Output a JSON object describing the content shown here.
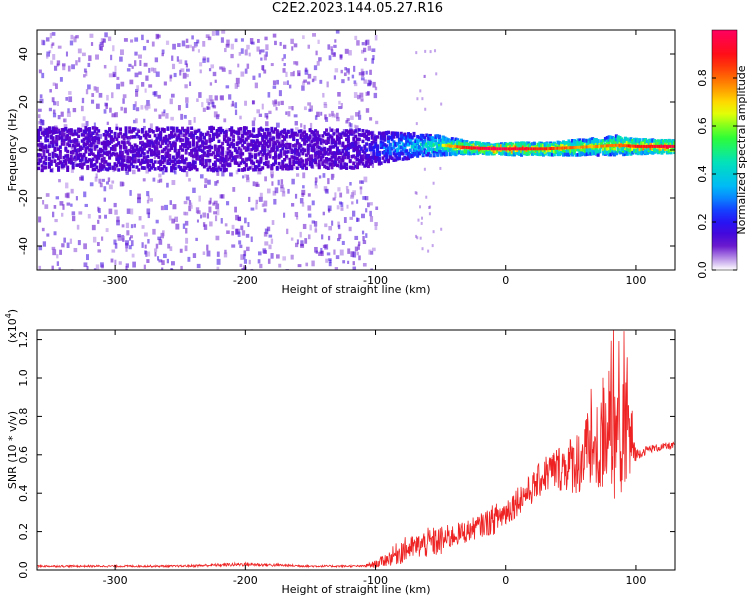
{
  "figure": {
    "title": "C2E2.2023.144.05.27.R16"
  },
  "chart_data": [
    {
      "type": "heatmap",
      "xlabel": "Height of straight line (km)",
      "ylabel": "Frequency (Hz)",
      "xlim": [
        -360,
        130
      ],
      "ylim": [
        -50,
        50
      ],
      "x_ticks": [
        -300,
        -200,
        -100,
        0,
        100
      ],
      "y_ticks": [
        -40,
        -20,
        0,
        20,
        40
      ],
      "grid": false,
      "colorbar": {
        "label": "Normalized spectral amplitude",
        "range": [
          0,
          1
        ],
        "ticks": [
          "0.0",
          "0.2",
          "0.4",
          "0.6",
          "0.8"
        ],
        "colormap": [
          "#ffffff",
          "#5a00c8",
          "#1a1aff",
          "#00b4ff",
          "#00e0c0",
          "#30ff30",
          "#ffff00",
          "#ff8000",
          "#ff1010",
          "#ff0060"
        ]
      },
      "band": [
        {
          "x": -350,
          "center": 0.5,
          "half_width": 9,
          "amplitude": 0.12
        },
        {
          "x": -300,
          "center": 0.5,
          "half_width": 9,
          "amplitude": 0.13
        },
        {
          "x": -250,
          "center": 0.5,
          "half_width": 9,
          "amplitude": 0.13
        },
        {
          "x": -200,
          "center": 0.5,
          "half_width": 9,
          "amplitude": 0.14
        },
        {
          "x": -150,
          "center": 0.5,
          "half_width": 8,
          "amplitude": 0.14
        },
        {
          "x": -110,
          "center": 0.5,
          "half_width": 8,
          "amplitude": 0.18
        },
        {
          "x": -90,
          "center": 1.5,
          "half_width": 6,
          "amplitude": 0.35
        },
        {
          "x": -70,
          "center": 2,
          "half_width": 5,
          "amplitude": 0.45
        },
        {
          "x": -50,
          "center": 2,
          "half_width": 4,
          "amplitude": 0.6
        },
        {
          "x": -30,
          "center": 1,
          "half_width": 2.5,
          "amplitude": 0.85
        },
        {
          "x": -10,
          "center": 0.5,
          "half_width": 2,
          "amplitude": 0.95
        },
        {
          "x": 10,
          "center": 0.5,
          "half_width": 2.5,
          "amplitude": 0.9
        },
        {
          "x": 30,
          "center": 0.5,
          "half_width": 2.5,
          "amplitude": 0.8
        },
        {
          "x": 50,
          "center": 1,
          "half_width": 3,
          "amplitude": 0.75
        },
        {
          "x": 70,
          "center": 1.5,
          "half_width": 3.5,
          "amplitude": 0.7
        },
        {
          "x": 85,
          "center": 2,
          "half_width": 4,
          "amplitude": 0.75
        },
        {
          "x": 100,
          "center": 1.5,
          "half_width": 3,
          "amplitude": 0.85
        },
        {
          "x": 125,
          "center": 1.5,
          "half_width": 2.5,
          "amplitude": 0.9
        }
      ],
      "scatter_region": {
        "x": [
          -360,
          -100
        ],
        "y": [
          -50,
          50
        ]
      }
    },
    {
      "type": "line",
      "xlabel": "Height of straight line (km)",
      "ylabel": "SNR (10 * v/v)",
      "y_multiplier": "(x10",
      "y_multiplier_exponent": "4",
      "y_multiplier_close": ")",
      "xlim": [
        -360,
        130
      ],
      "ylim": [
        0,
        1.25
      ],
      "x_ticks": [
        -300,
        -200,
        -100,
        0,
        100
      ],
      "y_ticks": [
        "0.0",
        "0.2",
        "0.4",
        "0.6",
        "0.8",
        "1.0",
        "1.2"
      ],
      "grid": false,
      "series": [
        {
          "color": "#ee2222",
          "x": [
            -360,
            -300,
            -250,
            -200,
            -150,
            -110,
            -100,
            -90,
            -80,
            -70,
            -60,
            -50,
            -40,
            -30,
            -20,
            -10,
            0,
            10,
            20,
            30,
            40,
            50,
            60,
            70,
            80,
            90,
            95,
            100,
            110,
            120,
            130
          ],
          "y": [
            0.02,
            0.02,
            0.02,
            0.03,
            0.02,
            0.02,
            0.03,
            0.06,
            0.1,
            0.12,
            0.14,
            0.15,
            0.18,
            0.2,
            0.23,
            0.26,
            0.3,
            0.37,
            0.42,
            0.5,
            0.53,
            0.55,
            0.58,
            0.62,
            0.66,
            0.68,
            0.7,
            0.6,
            0.63,
            0.64,
            0.65
          ],
          "noise_amplitude": [
            0.005,
            0.005,
            0.005,
            0.01,
            0.005,
            0.005,
            0.02,
            0.04,
            0.07,
            0.06,
            0.08,
            0.08,
            0.06,
            0.06,
            0.06,
            0.08,
            0.08,
            0.08,
            0.08,
            0.1,
            0.12,
            0.15,
            0.2,
            0.25,
            0.3,
            0.3,
            0.3,
            0.03,
            0.02,
            0.02,
            0.02
          ]
        }
      ]
    }
  ]
}
